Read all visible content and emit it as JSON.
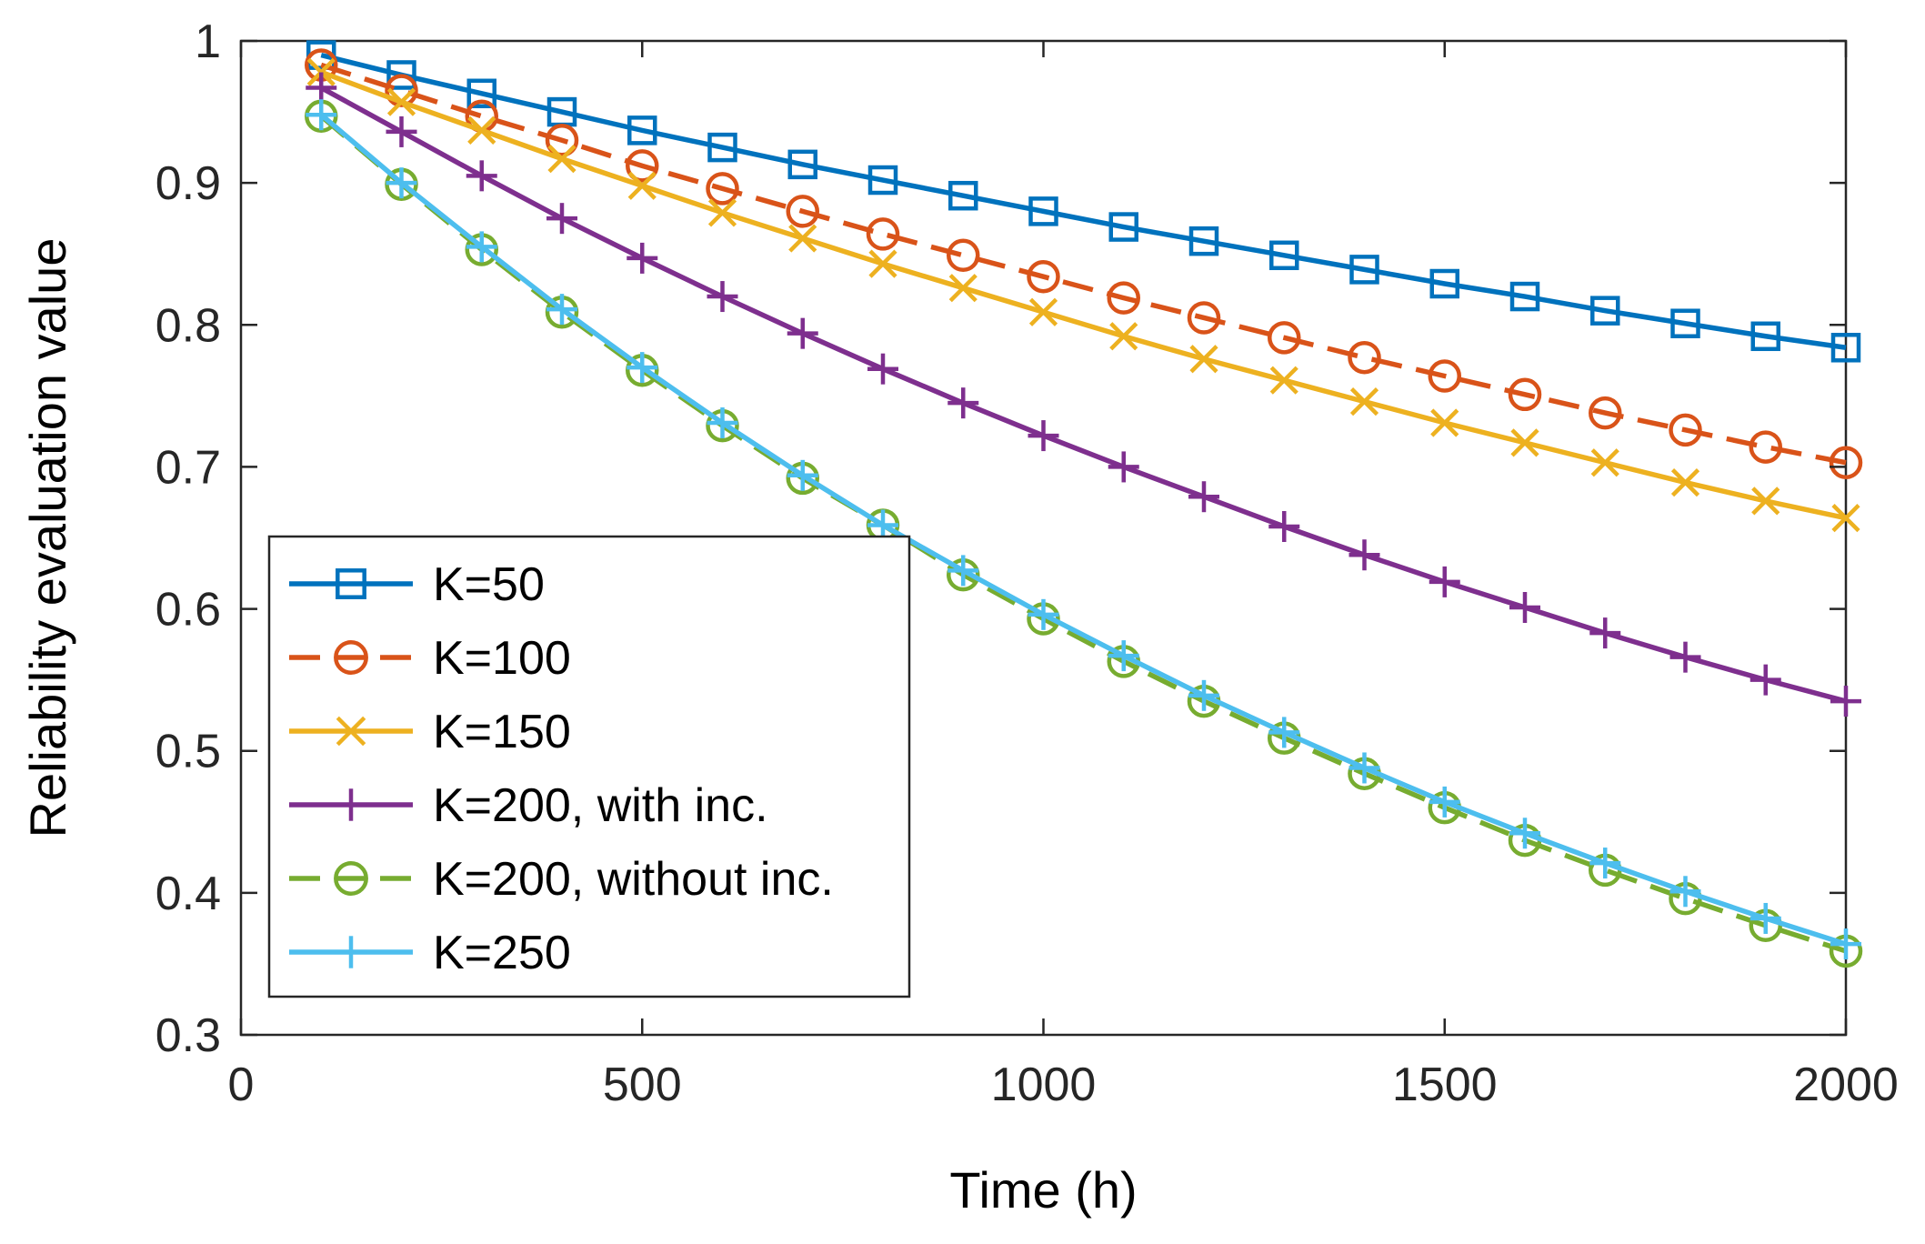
{
  "chart_data": {
    "type": "line",
    "title": "",
    "xlabel": "Time (h)",
    "ylabel": "Reliability evaluation value",
    "xlim": [
      0,
      2000
    ],
    "ylim": [
      0.3,
      1
    ],
    "xticks": [
      0,
      500,
      1000,
      1500,
      2000
    ],
    "xtick_labels": [
      "0",
      "500",
      "1000",
      "1500",
      "2000"
    ],
    "yticks": [
      0.3,
      0.4,
      0.5,
      0.6,
      0.7,
      0.8,
      0.9,
      1
    ],
    "ytick_labels": [
      "0.3",
      "0.4",
      "0.5",
      "0.6",
      "0.7",
      "0.8",
      "0.9",
      "1"
    ],
    "grid": false,
    "legend_position": "lower-left",
    "x": [
      100,
      200,
      300,
      400,
      500,
      600,
      700,
      800,
      900,
      1000,
      1100,
      1200,
      1300,
      1400,
      1500,
      1600,
      1700,
      1800,
      1900,
      2000
    ],
    "series": [
      {
        "name": "K=50",
        "color": "#0072BD",
        "marker": "square",
        "dashed": false,
        "values": [
          0.99,
          0.976,
          0.963,
          0.95,
          0.937,
          0.925,
          0.913,
          0.902,
          0.891,
          0.88,
          0.869,
          0.859,
          0.849,
          0.839,
          0.829,
          0.82,
          0.81,
          0.801,
          0.792,
          0.784
        ]
      },
      {
        "name": "K=100",
        "color": "#D95319",
        "marker": "circle",
        "dashed": true,
        "values": [
          0.983,
          0.965,
          0.947,
          0.93,
          0.912,
          0.896,
          0.88,
          0.864,
          0.849,
          0.834,
          0.819,
          0.805,
          0.791,
          0.777,
          0.764,
          0.751,
          0.738,
          0.726,
          0.714,
          0.703
        ]
      },
      {
        "name": "K=150",
        "color": "#EDB120",
        "marker": "x",
        "dashed": false,
        "values": [
          0.978,
          0.957,
          0.937,
          0.917,
          0.898,
          0.879,
          0.861,
          0.843,
          0.826,
          0.809,
          0.792,
          0.776,
          0.761,
          0.746,
          0.731,
          0.717,
          0.703,
          0.689,
          0.676,
          0.664
        ]
      },
      {
        "name": "K=200, with inc.",
        "color": "#7E2F8E",
        "marker": "plus",
        "dashed": false,
        "values": [
          0.967,
          0.936,
          0.905,
          0.875,
          0.847,
          0.82,
          0.794,
          0.769,
          0.745,
          0.722,
          0.7,
          0.679,
          0.658,
          0.638,
          0.619,
          0.601,
          0.583,
          0.566,
          0.55,
          0.535
        ]
      },
      {
        "name": "K=200, without inc.",
        "color": "#77AC30",
        "marker": "circle",
        "dashed": true,
        "values": [
          0.947,
          0.899,
          0.853,
          0.809,
          0.768,
          0.729,
          0.692,
          0.659,
          0.624,
          0.593,
          0.563,
          0.535,
          0.509,
          0.484,
          0.46,
          0.437,
          0.416,
          0.396,
          0.377,
          0.359
        ]
      },
      {
        "name": "K=250",
        "color": "#4DBEEE",
        "marker": "plus",
        "dashed": false,
        "values": [
          0.948,
          0.9,
          0.855,
          0.811,
          0.77,
          0.731,
          0.694,
          0.659,
          0.627,
          0.596,
          0.567,
          0.539,
          0.513,
          0.488,
          0.464,
          0.442,
          0.421,
          0.401,
          0.382,
          0.364
        ]
      }
    ]
  }
}
